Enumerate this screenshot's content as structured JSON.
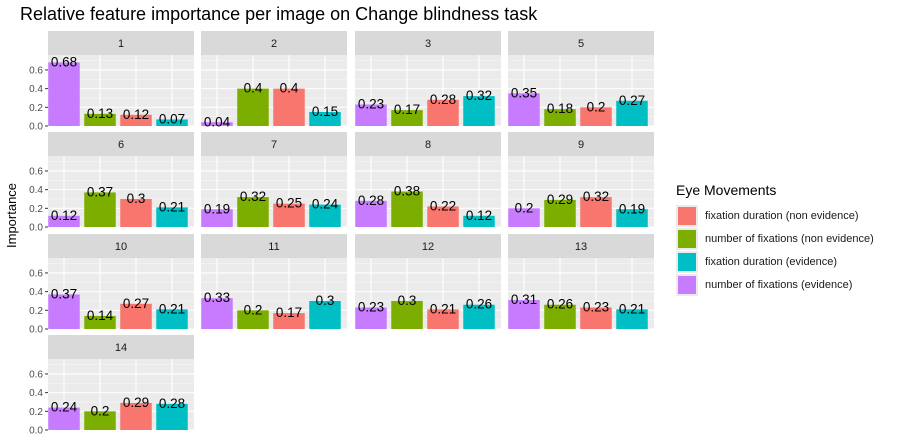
{
  "chart_data": {
    "type": "bar",
    "title": "Relative feature importance per image on Change blindness task",
    "ylabel": "Importance",
    "xlabel": "",
    "ylim": [
      0,
      0.76
    ],
    "yticks": [
      0.0,
      0.2,
      0.4,
      0.6
    ],
    "ytick_labels": [
      "0.0",
      "0.2",
      "0.4",
      "0.6"
    ],
    "legend": {
      "title": "Eye Movements",
      "position": "right",
      "entries": [
        {
          "label": "fixation duration (non evidence)",
          "color": "#f8766d"
        },
        {
          "label": "number of fixations (non evidence)",
          "color": "#7cae00"
        },
        {
          "label": "fixation duration (evidence)",
          "color": "#00bfc4"
        },
        {
          "label": "number of fixations (evidence)",
          "color": "#c77cff"
        }
      ]
    },
    "bar_colors": [
      "#c77cff",
      "#7cae00",
      "#f8766d",
      "#00bfc4"
    ],
    "facets": [
      {
        "panel": "1",
        "values": [
          0.68,
          0.13,
          0.12,
          0.07
        ],
        "labels": [
          "0.68",
          "0.13",
          "0.12",
          "0.07"
        ]
      },
      {
        "panel": "2",
        "values": [
          0.04,
          0.4,
          0.4,
          0.15
        ],
        "labels": [
          "0.04",
          "0.4",
          "0.4",
          "0.15"
        ]
      },
      {
        "panel": "3",
        "values": [
          0.23,
          0.17,
          0.28,
          0.32
        ],
        "labels": [
          "0.23",
          "0.17",
          "0.28",
          "0.32"
        ]
      },
      {
        "panel": "5",
        "values": [
          0.35,
          0.18,
          0.2,
          0.27
        ],
        "labels": [
          "0.35",
          "0.18",
          "0.2",
          "0.27"
        ]
      },
      {
        "panel": "6",
        "values": [
          0.12,
          0.37,
          0.3,
          0.21
        ],
        "labels": [
          "0.12",
          "0.37",
          "0.3",
          "0.21"
        ]
      },
      {
        "panel": "7",
        "values": [
          0.19,
          0.32,
          0.25,
          0.24
        ],
        "labels": [
          "0.19",
          "0.32",
          "0.25",
          "0.24"
        ]
      },
      {
        "panel": "8",
        "values": [
          0.28,
          0.38,
          0.22,
          0.12
        ],
        "labels": [
          "0.28",
          "0.38",
          "0.22",
          "0.12"
        ]
      },
      {
        "panel": "9",
        "values": [
          0.2,
          0.29,
          0.32,
          0.19
        ],
        "labels": [
          "0.2",
          "0.29",
          "0.32",
          "0.19"
        ]
      },
      {
        "panel": "10",
        "values": [
          0.37,
          0.14,
          0.27,
          0.21
        ],
        "labels": [
          "0.37",
          "0.14",
          "0.27",
          "0.21"
        ]
      },
      {
        "panel": "11",
        "values": [
          0.33,
          0.2,
          0.17,
          0.3
        ],
        "labels": [
          "0.33",
          "0.2",
          "0.17",
          "0.3"
        ]
      },
      {
        "panel": "12",
        "values": [
          0.23,
          0.3,
          0.21,
          0.26
        ],
        "labels": [
          "0.23",
          "0.3",
          "0.21",
          "0.26"
        ]
      },
      {
        "panel": "13",
        "values": [
          0.31,
          0.26,
          0.23,
          0.21
        ],
        "labels": [
          "0.31",
          "0.26",
          "0.23",
          "0.21"
        ]
      },
      {
        "panel": "14",
        "values": [
          0.24,
          0.2,
          0.29,
          0.28
        ],
        "labels": [
          "0.24",
          "0.2",
          "0.29",
          "0.28"
        ]
      }
    ]
  }
}
